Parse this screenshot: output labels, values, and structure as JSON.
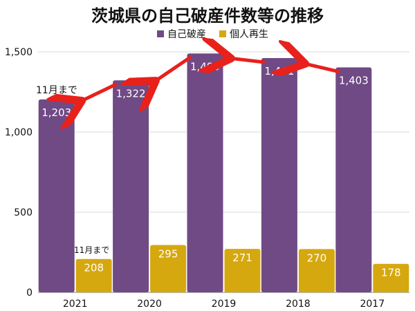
{
  "chart_data": {
    "type": "bar",
    "title": "茨城県の自己破産件数等の推移",
    "categories": [
      "2021",
      "2020",
      "2019",
      "2018",
      "2017"
    ],
    "series": [
      {
        "name": "自己破産",
        "values": [
          1203,
          1322,
          1490,
          1461,
          1403
        ],
        "color": "#6f4a85"
      },
      {
        "name": "個人再生",
        "values": [
          208,
          295,
          271,
          270,
          178
        ],
        "color": "#d6a80f"
      }
    ],
    "ylim": [
      0,
      1500
    ],
    "yticks": [
      0,
      500,
      1000,
      1500
    ],
    "ytick_labels": [
      "0",
      "500",
      "1,000",
      "1,500"
    ],
    "grid": true,
    "legend_position": "top-center",
    "annotations": {
      "main_note": "11月まで",
      "small_note": "11月まで",
      "arrow_color": "#e8211b"
    }
  }
}
